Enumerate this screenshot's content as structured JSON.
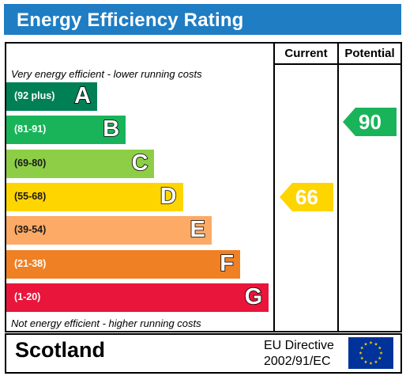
{
  "title": "Energy Efficiency Rating",
  "columns": {
    "current": "Current",
    "potential": "Potential"
  },
  "captions": {
    "top": "Very energy efficient - lower running costs",
    "bottom": "Not energy efficient - higher running costs"
  },
  "chart_data": {
    "type": "bar",
    "categories": [
      "A",
      "B",
      "C",
      "D",
      "E",
      "F",
      "G"
    ],
    "bands": [
      {
        "letter": "A",
        "range": "(92 plus)",
        "color": "#008054"
      },
      {
        "letter": "B",
        "range": "(81-91)",
        "color": "#19b459"
      },
      {
        "letter": "C",
        "range": "(69-80)",
        "color": "#8dce46"
      },
      {
        "letter": "D",
        "range": "(55-68)",
        "color": "#ffd500"
      },
      {
        "letter": "E",
        "range": "(39-54)",
        "color": "#fcaa65"
      },
      {
        "letter": "F",
        "range": "(21-38)",
        "color": "#ef8023"
      },
      {
        "letter": "G",
        "range": "(1-20)",
        "color": "#e9153b"
      }
    ],
    "current": {
      "value": 66,
      "band": "D",
      "color": "#ffd500"
    },
    "potential": {
      "value": 90,
      "band": "B",
      "color": "#19b459"
    }
  },
  "footer": {
    "region": "Scotland",
    "directive_line1": "EU Directive",
    "directive_line2": "2002/91/EC"
  }
}
